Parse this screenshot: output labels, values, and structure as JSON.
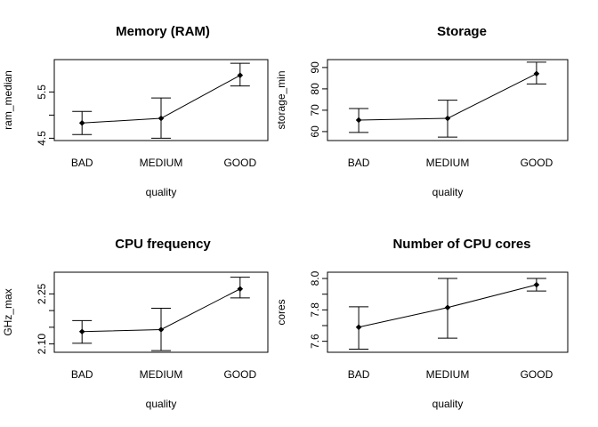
{
  "chart_data": [
    {
      "type": "line",
      "title": "Memory (RAM)",
      "xlabel": "quality",
      "ylabel": "ram_median",
      "categories": [
        "BAD",
        "MEDIUM",
        "GOOD"
      ],
      "y_ticks": [
        4.5,
        5.0,
        5.5
      ],
      "y_tick_labels": [
        "4.5",
        "",
        "5.5"
      ],
      "ylim": [
        4.45,
        6.2
      ],
      "series": [
        {
          "means": [
            4.83,
            4.93,
            5.86
          ],
          "err_low": [
            4.58,
            4.5,
            5.63
          ],
          "err_high": [
            5.08,
            5.37,
            6.12
          ]
        }
      ]
    },
    {
      "type": "line",
      "title": "Storage",
      "xlabel": "quality",
      "ylabel": "storage_min",
      "categories": [
        "BAD",
        "MEDIUM",
        "GOOD"
      ],
      "y_ticks": [
        60,
        70,
        80,
        90
      ],
      "y_tick_labels": [
        "60",
        "70",
        "80",
        "90"
      ],
      "ylim": [
        55.8,
        93.7
      ],
      "series": [
        {
          "means": [
            65.4,
            66.2,
            87.1
          ],
          "err_low": [
            59.6,
            57.4,
            82.3
          ],
          "err_high": [
            70.8,
            74.7,
            92.5
          ]
        }
      ]
    },
    {
      "type": "line",
      "title": "CPU frequency",
      "xlabel": "quality",
      "ylabel": "GHz_max",
      "categories": [
        "BAD",
        "MEDIUM",
        "GOOD"
      ],
      "y_ticks": [
        2.1,
        2.15,
        2.2,
        2.25
      ],
      "y_tick_labels": [
        "2.10",
        "",
        "",
        "2.25"
      ],
      "ylim": [
        2.075,
        2.315
      ],
      "series": [
        {
          "means": [
            2.137,
            2.143,
            2.265
          ],
          "err_low": [
            2.102,
            2.08,
            2.238
          ],
          "err_high": [
            2.17,
            2.207,
            2.3
          ]
        }
      ]
    },
    {
      "type": "line",
      "title": "Number of CPU cores",
      "xlabel": "quality",
      "ylabel": "cores",
      "categories": [
        "BAD",
        "MEDIUM",
        "GOOD"
      ],
      "y_ticks": [
        7.6,
        7.7,
        7.8,
        7.9,
        8.0
      ],
      "y_tick_labels": [
        "7.6",
        "",
        "7.8",
        "",
        "8.0"
      ],
      "ylim": [
        7.53,
        8.04
      ],
      "series": [
        {
          "means": [
            7.69,
            7.815,
            7.96
          ],
          "err_low": [
            7.55,
            7.62,
            7.92
          ],
          "err_high": [
            7.82,
            8.0,
            8.0
          ]
        }
      ]
    }
  ]
}
